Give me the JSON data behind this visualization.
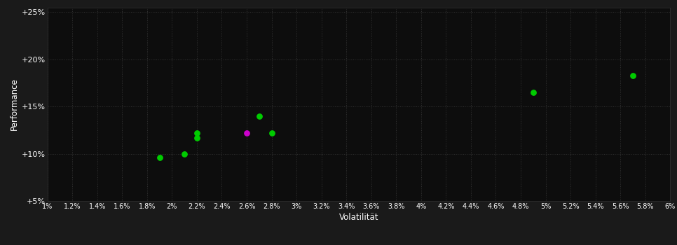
{
  "background_color": "#1a1a1a",
  "plot_bg_color": "#0d0d0d",
  "grid_color": "#333333",
  "text_color": "#ffffff",
  "xlabel": "Volatilität",
  "ylabel": "Performance",
  "xlim": [
    0.01,
    0.06
  ],
  "ylim": [
    0.05,
    0.255
  ],
  "xticks": [
    0.01,
    0.012,
    0.014,
    0.016,
    0.018,
    0.02,
    0.022,
    0.024,
    0.026,
    0.028,
    0.03,
    0.032,
    0.034,
    0.036,
    0.038,
    0.04,
    0.042,
    0.044,
    0.046,
    0.048,
    0.05,
    0.052,
    0.054,
    0.056,
    0.058,
    0.06
  ],
  "yticks": [
    0.05,
    0.1,
    0.15,
    0.2,
    0.25
  ],
  "ytick_labels": [
    "+5%",
    "+10%",
    "+15%",
    "+20%",
    "+25%"
  ],
  "xtick_labels": [
    "1%",
    "1.2%",
    "1.4%",
    "1.6%",
    "1.8%",
    "2%",
    "2.2%",
    "2.4%",
    "2.6%",
    "2.8%",
    "3%",
    "3.2%",
    "3.4%",
    "3.6%",
    "3.8%",
    "4%",
    "4.2%",
    "4.4%",
    "4.6%",
    "4.8%",
    "5%",
    "5.2%",
    "5.4%",
    "5.6%",
    "5.8%",
    "6%"
  ],
  "green_points": [
    [
      0.019,
      0.096
    ],
    [
      0.021,
      0.1
    ],
    [
      0.022,
      0.122
    ],
    [
      0.022,
      0.117
    ],
    [
      0.027,
      0.14
    ],
    [
      0.028,
      0.122
    ],
    [
      0.049,
      0.165
    ],
    [
      0.057,
      0.183
    ]
  ],
  "magenta_points": [
    [
      0.026,
      0.122
    ]
  ],
  "green_color": "#00cc00",
  "magenta_color": "#cc00cc",
  "marker_size": 28
}
